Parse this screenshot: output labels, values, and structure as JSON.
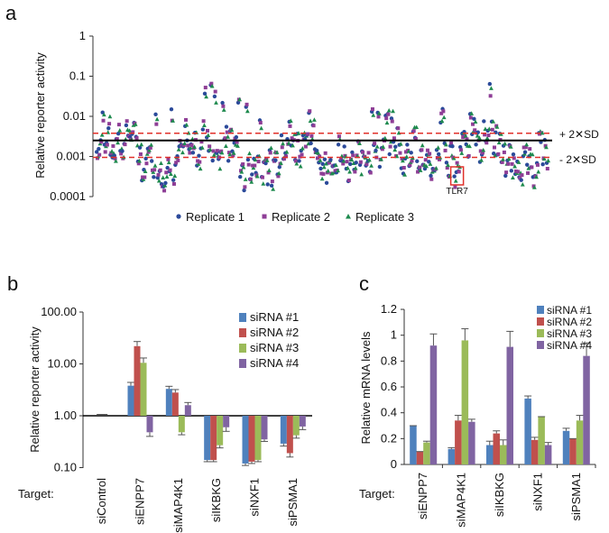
{
  "colors": {
    "replicate1": "#2b4a9a",
    "replicate2": "#8e3e96",
    "replicate3": "#1e8a4e",
    "siRNA1": "#4f81bd",
    "siRNA2": "#c0504d",
    "siRNA3": "#9bbb59",
    "siRNA4": "#8064a2",
    "sd_line": "#e0302a",
    "mean_line": "#000000",
    "tlr7_box": "#e0302a"
  },
  "chart_data": [
    {
      "panel": "a",
      "type": "scatter",
      "title": "",
      "ylabel": "Relative reporter activity",
      "yscale": "log",
      "ylim": [
        0.0001,
        1
      ],
      "yticks": [
        "1",
        "0.1",
        "0.01",
        "0.001",
        "0.0001"
      ],
      "ytick_values": [
        1,
        0.1,
        0.01,
        0.001,
        0.0001
      ],
      "legend": [
        "Replicate 1",
        "Replicate 2",
        "Replicate 3"
      ],
      "n_points": 230,
      "mean_value": 0.0025,
      "plus_sd_value": 0.0038,
      "minus_sd_value": 0.00095,
      "plus_sd_label": "+ 2✕SD",
      "minus_sd_label": "- 2✕SD",
      "highlight": {
        "label": "TLR7",
        "index": 183,
        "value": 0.00048
      },
      "peaks": [
        {
          "index": 3,
          "value": 0.011
        },
        {
          "index": 13,
          "value": 0.0012
        },
        {
          "index": 30,
          "value": 0.0085
        },
        {
          "index": 38,
          "value": 0.011
        },
        {
          "index": 45,
          "value": 0.0055
        },
        {
          "index": 55,
          "value": 0.04
        },
        {
          "index": 58,
          "value": 0.065
        },
        {
          "index": 60,
          "value": 0.03
        },
        {
          "index": 64,
          "value": 0.018
        },
        {
          "index": 72,
          "value": 0.025
        },
        {
          "index": 76,
          "value": 0.014
        },
        {
          "index": 83,
          "value": 0.007
        },
        {
          "index": 140,
          "value": 0.015
        },
        {
          "index": 143,
          "value": 0.012
        },
        {
          "index": 147,
          "value": 0.0075
        },
        {
          "index": 175,
          "value": 0.009
        },
        {
          "index": 176,
          "value": 0.013
        },
        {
          "index": 190,
          "value": 0.012
        },
        {
          "index": 200,
          "value": 0.045
        },
        {
          "index": 225,
          "value": 0.003
        }
      ]
    },
    {
      "panel": "b",
      "type": "bar",
      "ylabel": "Relative reporter activity",
      "yscale": "log",
      "ylim": [
        0.1,
        100
      ],
      "yticks": [
        "100.00",
        "10.00",
        "1.00",
        "0.10"
      ],
      "ytick_values": [
        100,
        10,
        1,
        0.1
      ],
      "baseline": 1,
      "target_label": "Target:",
      "categories": [
        "siControl",
        "siENPP7",
        "siMAP4K1",
        "siIKBKG",
        "siNXF1",
        "siPSMA1"
      ],
      "series": [
        {
          "name": "siRNA #1",
          "values": [
            1.0,
            3.8,
            3.3,
            0.14,
            0.12,
            0.29
          ],
          "errors": [
            0,
            0.6,
            0.4,
            0.01,
            0.01,
            0.03
          ]
        },
        {
          "name": "siRNA #2",
          "values": [
            1.0,
            22,
            2.8,
            0.14,
            0.13,
            0.19
          ],
          "errors": [
            0,
            5,
            0.4,
            0.01,
            0.01,
            0.03
          ]
        },
        {
          "name": "siRNA #3",
          "values": [
            1.0,
            10.5,
            0.48,
            0.27,
            0.14,
            0.42
          ],
          "errors": [
            0,
            2.5,
            0.05,
            0.03,
            0.01,
            0.05
          ]
        },
        {
          "name": "siRNA #4",
          "values": [
            1.0,
            0.48,
            1.6,
            0.6,
            0.35,
            0.62
          ],
          "errors": [
            0,
            0.08,
            0.2,
            0.1,
            0.03,
            0.08
          ]
        }
      ]
    },
    {
      "panel": "c",
      "type": "bar",
      "ylabel": "Relative mRNA levels",
      "ylim": [
        0,
        1.2
      ],
      "yticks": [
        "1.2",
        "1",
        "0.8",
        "0.6",
        "0.4",
        "0.2",
        "0"
      ],
      "ytick_values": [
        1.2,
        1,
        0.8,
        0.6,
        0.4,
        0.2,
        0
      ],
      "target_label": "Target:",
      "categories": [
        "siENPP7",
        "siMAP4K1",
        "siIKBKG",
        "siNXF1",
        "siPSMA1"
      ],
      "series": [
        {
          "name": "siRNA #1",
          "values": [
            0.3,
            0.12,
            0.15,
            0.51,
            0.26
          ],
          "errors": [
            0,
            0.01,
            0.03,
            0.02,
            0.02
          ]
        },
        {
          "name": "siRNA #2",
          "values": [
            0.1,
            0.34,
            0.24,
            0.19,
            0.2
          ],
          "errors": [
            0,
            0.04,
            0.02,
            0.02,
            0
          ]
        },
        {
          "name": "siRNA #3",
          "values": [
            0.17,
            0.96,
            0.15,
            0.37,
            0.34
          ],
          "errors": [
            0.01,
            0.09,
            0.04,
            0,
            0.04
          ]
        },
        {
          "name": "siRNA #4",
          "values": [
            0.92,
            0.33,
            0.91,
            0.15,
            0.84
          ],
          "errors": [
            0.09,
            0.02,
            0.12,
            0.02,
            0.1
          ]
        }
      ]
    }
  ],
  "panel_labels": [
    "a",
    "b",
    "c"
  ]
}
